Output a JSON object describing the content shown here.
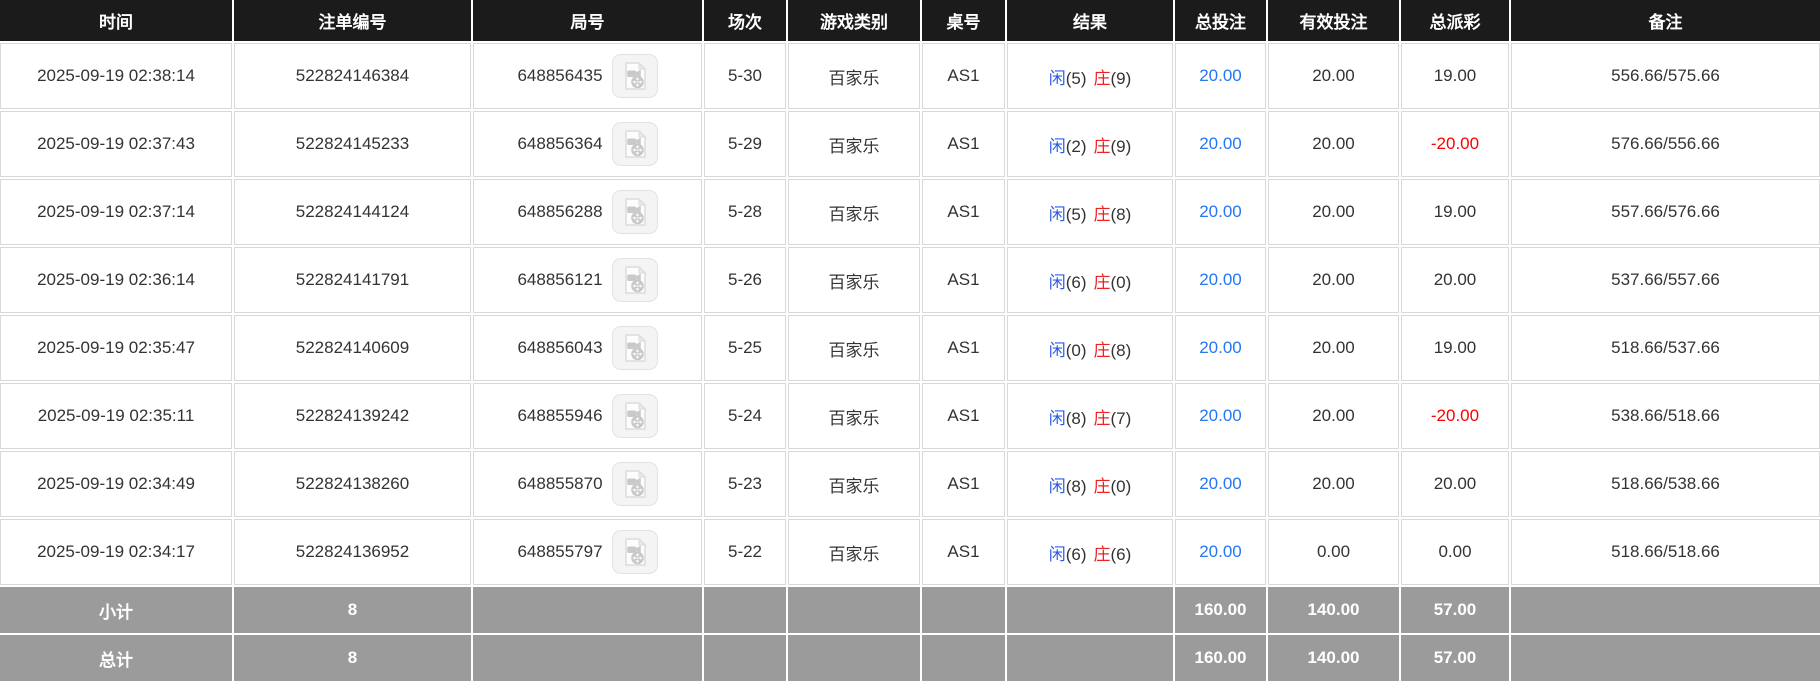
{
  "table": {
    "columns": [
      {
        "key": "time",
        "label": "时间"
      },
      {
        "key": "bet_no",
        "label": "注单编号"
      },
      {
        "key": "game_no",
        "label": "局号"
      },
      {
        "key": "session",
        "label": "场次"
      },
      {
        "key": "game_type",
        "label": "游戏类别"
      },
      {
        "key": "table_no",
        "label": "桌号"
      },
      {
        "key": "result",
        "label": "结果"
      },
      {
        "key": "total_bet",
        "label": "总投注"
      },
      {
        "key": "valid_bet",
        "label": "有效投注"
      },
      {
        "key": "payout",
        "label": "总派彩"
      },
      {
        "key": "remark",
        "label": "备注"
      }
    ],
    "rows": [
      {
        "time": "2025-09-19 02:38:14",
        "bet_no": "522824146384",
        "game_no": "648856435",
        "session": "5-30",
        "game_type": "百家乐",
        "table_no": "AS1",
        "result": {
          "player_label": "闲",
          "player_value": "(5)",
          "banker_label": "庄",
          "banker_value": "(9)"
        },
        "total_bet": "20.00",
        "valid_bet": "20.00",
        "payout": "19.00",
        "remark": "556.66/575.66"
      },
      {
        "time": "2025-09-19 02:37:43",
        "bet_no": "522824145233",
        "game_no": "648856364",
        "session": "5-29",
        "game_type": "百家乐",
        "table_no": "AS1",
        "result": {
          "player_label": "闲",
          "player_value": "(2)",
          "banker_label": "庄",
          "banker_value": "(9)"
        },
        "total_bet": "20.00",
        "valid_bet": "20.00",
        "payout": "-20.00",
        "remark": "576.66/556.66"
      },
      {
        "time": "2025-09-19 02:37:14",
        "bet_no": "522824144124",
        "game_no": "648856288",
        "session": "5-28",
        "game_type": "百家乐",
        "table_no": "AS1",
        "result": {
          "player_label": "闲",
          "player_value": "(5)",
          "banker_label": "庄",
          "banker_value": "(8)"
        },
        "total_bet": "20.00",
        "valid_bet": "20.00",
        "payout": "19.00",
        "remark": "557.66/576.66"
      },
      {
        "time": "2025-09-19 02:36:14",
        "bet_no": "522824141791",
        "game_no": "648856121",
        "session": "5-26",
        "game_type": "百家乐",
        "table_no": "AS1",
        "result": {
          "player_label": "闲",
          "player_value": "(6)",
          "banker_label": "庄",
          "banker_value": "(0)"
        },
        "total_bet": "20.00",
        "valid_bet": "20.00",
        "payout": "20.00",
        "remark": "537.66/557.66"
      },
      {
        "time": "2025-09-19 02:35:47",
        "bet_no": "522824140609",
        "game_no": "648856043",
        "session": "5-25",
        "game_type": "百家乐",
        "table_no": "AS1",
        "result": {
          "player_label": "闲",
          "player_value": "(0)",
          "banker_label": "庄",
          "banker_value": "(8)"
        },
        "total_bet": "20.00",
        "valid_bet": "20.00",
        "payout": "19.00",
        "remark": "518.66/537.66"
      },
      {
        "time": "2025-09-19 02:35:11",
        "bet_no": "522824139242",
        "game_no": "648855946",
        "session": "5-24",
        "game_type": "百家乐",
        "table_no": "AS1",
        "result": {
          "player_label": "闲",
          "player_value": "(8)",
          "banker_label": "庄",
          "banker_value": "(7)"
        },
        "total_bet": "20.00",
        "valid_bet": "20.00",
        "payout": "-20.00",
        "remark": "538.66/518.66"
      },
      {
        "time": "2025-09-19 02:34:49",
        "bet_no": "522824138260",
        "game_no": "648855870",
        "session": "5-23",
        "game_type": "百家乐",
        "table_no": "AS1",
        "result": {
          "player_label": "闲",
          "player_value": "(8)",
          "banker_label": "庄",
          "banker_value": "(0)"
        },
        "total_bet": "20.00",
        "valid_bet": "20.00",
        "payout": "20.00",
        "remark": "518.66/538.66"
      },
      {
        "time": "2025-09-19 02:34:17",
        "bet_no": "522824136952",
        "game_no": "648855797",
        "session": "5-22",
        "game_type": "百家乐",
        "table_no": "AS1",
        "result": {
          "player_label": "闲",
          "player_value": "(6)",
          "banker_label": "庄",
          "banker_value": "(6)"
        },
        "total_bet": "20.00",
        "valid_bet": "0.00",
        "payout": "0.00",
        "remark": "518.66/518.66"
      }
    ],
    "summary_rows": [
      {
        "label": "小计",
        "count": "8",
        "total_bet": "160.00",
        "valid_bet": "140.00",
        "payout": "57.00"
      },
      {
        "label": "总计",
        "count": "8",
        "total_bet": "160.00",
        "valid_bet": "140.00",
        "payout": "57.00"
      }
    ]
  },
  "icons": {
    "video_replay": "video-replay-icon"
  },
  "colors": {
    "header_bg": "#1b1b1b",
    "summary_bg": "#9b9b9b",
    "accent_blue": "#2478f4",
    "player_blue": "#2e5be6",
    "banker_red": "#ef2222",
    "negative_red": "#ff0000"
  }
}
